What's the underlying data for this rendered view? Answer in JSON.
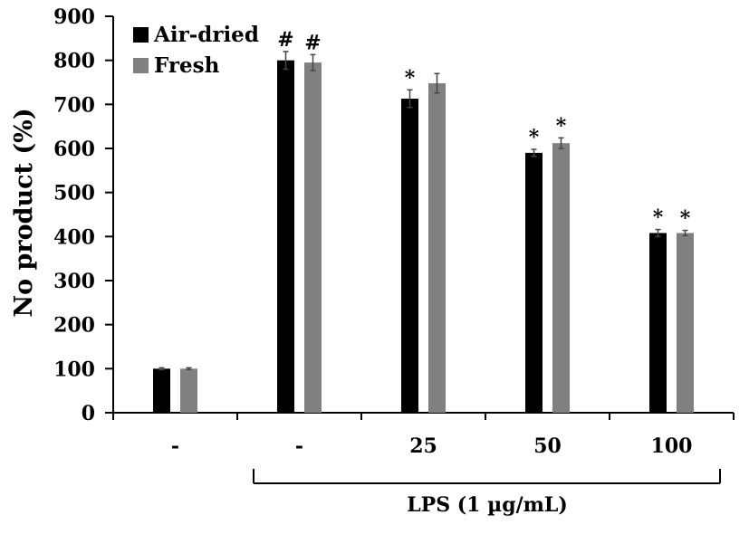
{
  "chart_data": {
    "type": "bar",
    "categories": [
      "-",
      "-",
      "25",
      "50",
      "100"
    ],
    "series": [
      {
        "name": "Air-dried",
        "color": "#000000",
        "values": [
          100,
          800,
          713,
          590,
          408
        ],
        "errors": [
          2,
          20,
          20,
          8,
          8
        ],
        "annotations": [
          "",
          "#",
          "*",
          "*",
          "*"
        ]
      },
      {
        "name": "Fresh",
        "color": "#808080",
        "values": [
          100,
          795,
          748,
          612,
          408
        ],
        "errors": [
          2,
          18,
          22,
          12,
          6
        ],
        "annotations": [
          "",
          "#",
          "",
          "*",
          "*"
        ]
      }
    ],
    "ylabel": "No product (%)",
    "xlabel": "",
    "ylim": [
      0,
      900
    ],
    "yticks": [
      "0",
      "100",
      "200",
      "300",
      "400",
      "500",
      "600",
      "700",
      "800",
      "900"
    ],
    "group_label": "LPS (1 µg/mL)",
    "legend_position": "top-left",
    "grid": false
  }
}
